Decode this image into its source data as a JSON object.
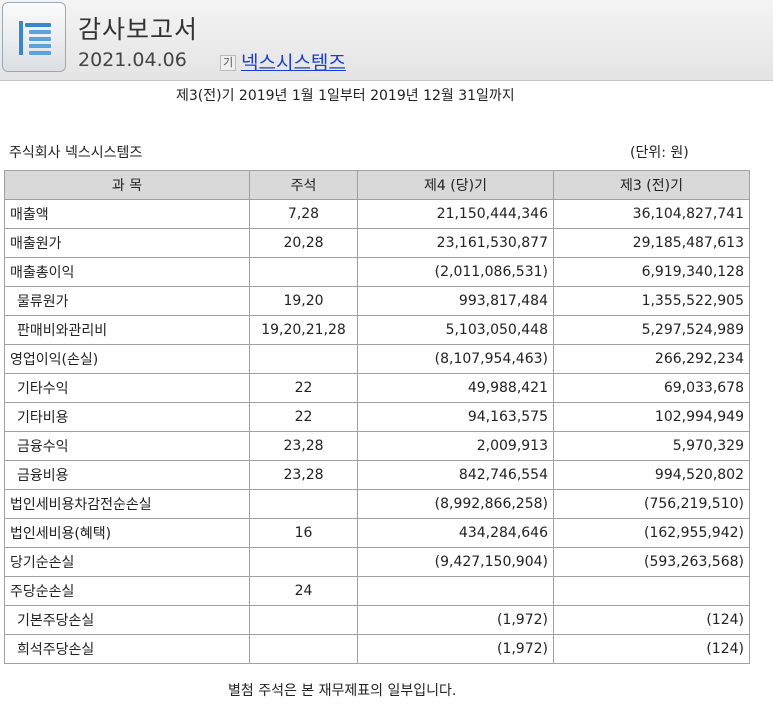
{
  "header": {
    "title": "감사보고서",
    "date": "2021.04.06",
    "badge": "기",
    "company_link": "넥스시스템즈",
    "icon": "document-list-icon"
  },
  "report": {
    "period": "제3(전)기 2019년 1월 1일부터 2019년 12월 31일까지",
    "entity": "주식회사 넥스시스템즈",
    "unit": "(단위: 원)",
    "footer_note": "별첨 주석은 본 재무제표의 일부입니다."
  },
  "table": {
    "headers": [
      "과 목",
      "주석",
      "제4 (당)기",
      "제3 (전)기"
    ],
    "rows": [
      {
        "item": "매출액",
        "note": "7,28",
        "current": "21,150,444,346",
        "prior": "36,104,827,741"
      },
      {
        "item": "매출원가",
        "note": "20,28",
        "current": "23,161,530,877",
        "prior": "29,185,487,613"
      },
      {
        "item": "매출총이익",
        "note": "",
        "current": "(2,011,086,531)",
        "prior": "6,919,340,128"
      },
      {
        "item": " 물류원가",
        "note": "19,20",
        "current": "993,817,484",
        "prior": "1,355,522,905"
      },
      {
        "item": " 판매비와관리비",
        "note": "19,20,21,28",
        "current": "5,103,050,448",
        "prior": "5,297,524,989"
      },
      {
        "item": "영업이익(손실)",
        "note": "",
        "current": "(8,107,954,463)",
        "prior": "266,292,234"
      },
      {
        "item": " 기타수익",
        "note": "22",
        "current": "49,988,421",
        "prior": "69,033,678"
      },
      {
        "item": " 기타비용",
        "note": "22",
        "current": "94,163,575",
        "prior": "102,994,949"
      },
      {
        "item": " 금융수익",
        "note": "23,28",
        "current": "2,009,913",
        "prior": "5,970,329"
      },
      {
        "item": " 금융비용",
        "note": "23,28",
        "current": "842,746,554",
        "prior": "994,520,802"
      },
      {
        "item": "법인세비용차감전순손실",
        "note": "",
        "current": "(8,992,866,258)",
        "prior": "(756,219,510)"
      },
      {
        "item": "법인세비용(혜택)",
        "note": "16",
        "current": "434,284,646",
        "prior": "(162,955,942)"
      },
      {
        "item": "당기순손실",
        "note": "",
        "current": "(9,427,150,904)",
        "prior": "(593,263,568)"
      },
      {
        "item": "주당순손실",
        "note": "24",
        "current": "",
        "prior": ""
      },
      {
        "item": " 기본주당손실",
        "note": "",
        "current": "(1,972)",
        "prior": "(124)"
      },
      {
        "item": " 희석주당손실",
        "note": "",
        "current": "(1,972)",
        "prior": "(124)"
      }
    ]
  }
}
